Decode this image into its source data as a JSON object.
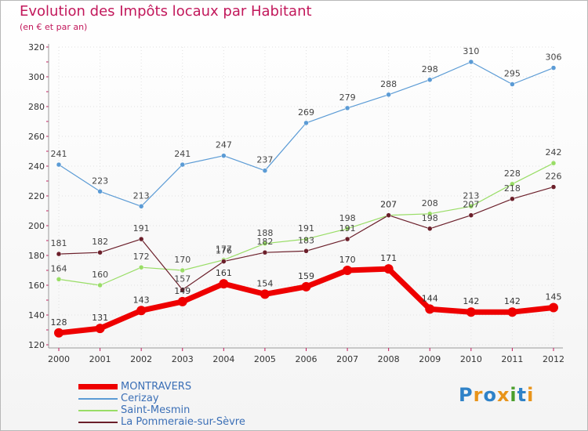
{
  "title": "Evolution des Impôts locaux par Habitant",
  "subtitle": "(en € et par an)",
  "logo": {
    "letters": [
      "P",
      "r",
      "o",
      "x",
      "i",
      "t",
      "i"
    ],
    "colors": [
      "#2f82c8",
      "#e8941a",
      "#2f82c8",
      "#e8941a",
      "#4a9e2c",
      "#2f82c8",
      "#e8941a"
    ]
  },
  "chart_data": {
    "type": "line",
    "x": [
      "2000",
      "2001",
      "2002",
      "2003",
      "2004",
      "2005",
      "2006",
      "2007",
      "2008",
      "2009",
      "2010",
      "2011",
      "2012"
    ],
    "ylim": [
      120,
      320
    ],
    "yticks": [
      "120",
      "140",
      "160",
      "180",
      "200",
      "220",
      "240",
      "260",
      "280",
      "300",
      "320"
    ],
    "grid": true,
    "legend_position": "bottom-left",
    "series": [
      {
        "name": "MONTRAVERS",
        "color": "#ee0000",
        "values": [
          128,
          131,
          143,
          149,
          161,
          154,
          159,
          170,
          171,
          144,
          142,
          142,
          145
        ],
        "labels": [
          "128",
          "131",
          "143",
          "149",
          "161",
          "154",
          "159",
          "170",
          "171",
          "144",
          "142",
          "142",
          "145"
        ]
      },
      {
        "name": "Cerizay",
        "color": "#5b9bd5",
        "values": [
          241,
          223,
          213,
          241,
          247,
          237,
          269,
          279,
          288,
          298,
          310,
          295,
          306
        ],
        "labels": [
          "241",
          "223",
          "213",
          "241",
          "247",
          "237",
          "269",
          "279",
          "288",
          "298",
          "310",
          "295",
          "306"
        ]
      },
      {
        "name": "Saint-Mesmin",
        "color": "#99dd66",
        "values": [
          164,
          160,
          172,
          170,
          177,
          188,
          191,
          198,
          207,
          208,
          213,
          228,
          242
        ],
        "labels": [
          "164",
          "160",
          "172",
          "170",
          "177",
          "188",
          "191",
          "198",
          "207",
          "208",
          "213",
          "228",
          "242"
        ]
      },
      {
        "name": "La Pommeraie-sur-Sèvre",
        "color": "#6b1f2a",
        "values": [
          181,
          182,
          191,
          157,
          176,
          182,
          183,
          191,
          207,
          198,
          207,
          218,
          226
        ],
        "labels": [
          "181",
          "182",
          "191",
          "157",
          "176",
          "182",
          "183",
          "191",
          "207",
          "198",
          "207",
          "218",
          "226"
        ]
      }
    ]
  }
}
